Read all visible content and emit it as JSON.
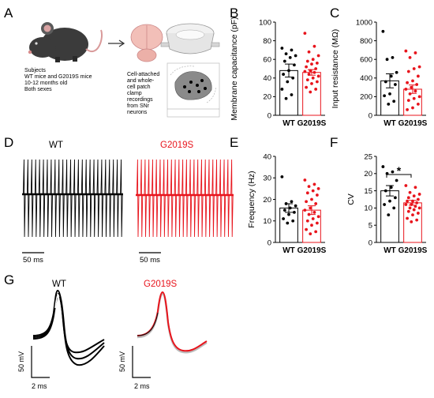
{
  "panel_labels": {
    "A": "A",
    "B": "B",
    "C": "C",
    "D": "D",
    "E": "E",
    "F": "F",
    "G": "G"
  },
  "panel_a": {
    "subjects_lines": [
      "Subjects",
      "WT mice and G2019S mice",
      "10-12 months old",
      "Both sexes"
    ],
    "recording_lines": [
      "Cell-attached",
      "and        whole-",
      "cell        patch",
      "clamp",
      "recordings",
      "from          SNr",
      "neurons"
    ]
  },
  "groups": {
    "wt": "WT",
    "mutant": "G2019S"
  },
  "colors": {
    "wt": "#000000",
    "mutant": "#e8141c",
    "mutant_overlay": "#bcbcbc"
  },
  "scale_bars": {
    "d_wt": "50 ms",
    "d_mut": "50 ms",
    "g_wt_v": "50 mV",
    "g_wt_t": "2 ms",
    "g_mut_v": "50 mV",
    "g_mut_t": "2 ms"
  },
  "significance": "*",
  "chart_data": [
    {
      "panel": "B",
      "type": "bar",
      "ylabel": "Membrane capacitance (pF)",
      "ylim": [
        0,
        100
      ],
      "yticks": [
        0,
        20,
        40,
        60,
        80,
        100
      ],
      "categories": [
        "WT",
        "G2019S"
      ],
      "series": [
        {
          "name": "WT",
          "mean": 48,
          "sem": 7,
          "points": [
            72,
            70,
            66,
            64,
            62,
            58,
            54,
            48,
            44,
            40,
            36,
            28,
            22,
            18
          ]
        },
        {
          "name": "G2019S",
          "mean": 46,
          "sem": 3,
          "points": [
            88,
            74,
            68,
            64,
            60,
            58,
            56,
            55,
            52,
            50,
            48,
            47,
            46,
            44,
            42,
            40,
            38,
            36,
            34,
            30,
            28,
            25
          ]
        }
      ]
    },
    {
      "panel": "C",
      "type": "bar",
      "ylabel": "Input resistance (MΩ)",
      "ylim": [
        0,
        1000
      ],
      "yticks": [
        0,
        200,
        400,
        600,
        800,
        1000
      ],
      "categories": [
        "WT",
        "G2019S"
      ],
      "series": [
        {
          "name": "WT",
          "mean": 370,
          "sem": 75,
          "points": [
            900,
            620,
            600,
            460,
            420,
            360,
            330,
            230,
            210,
            150,
            120
          ]
        },
        {
          "name": "G2019S",
          "mean": 280,
          "sem": 45,
          "points": [
            690,
            670,
            620,
            520,
            500,
            470,
            420,
            370,
            350,
            330,
            300,
            280,
            260,
            230,
            200,
            180,
            160,
            120,
            80,
            60
          ]
        }
      ]
    },
    {
      "panel": "E",
      "type": "bar",
      "ylabel": "Frequency (Hz)",
      "ylim": [
        0,
        40
      ],
      "yticks": [
        0,
        10,
        20,
        30,
        40
      ],
      "categories": [
        "WT",
        "G2019S"
      ],
      "series": [
        {
          "name": "WT",
          "mean": 16,
          "sem": 2,
          "points": [
            30.5,
            19,
            18,
            17,
            16,
            15,
            14,
            13,
            11,
            10,
            9
          ]
        },
        {
          "name": "G2019S",
          "mean": 15,
          "sem": 2,
          "points": [
            29,
            27,
            26,
            25,
            24,
            23,
            22,
            20,
            19,
            18,
            16,
            15,
            14,
            13,
            12,
            11,
            10,
            9,
            8,
            6,
            5,
            4
          ]
        }
      ]
    },
    {
      "panel": "F",
      "type": "bar",
      "ylabel": "CV",
      "ylim": [
        0,
        25
      ],
      "yticks": [
        0,
        5,
        10,
        15,
        20,
        25
      ],
      "categories": [
        "WT",
        "G2019S"
      ],
      "series": [
        {
          "name": "WT",
          "mean": 15,
          "sem": 1.5,
          "points": [
            22,
            20.5,
            20,
            18,
            16,
            15,
            13,
            12,
            11,
            10,
            8
          ]
        },
        {
          "name": "G2019S",
          "mean": 11.5,
          "sem": 0.7,
          "points": [
            16.5,
            16,
            14.5,
            14,
            13.5,
            13,
            12.5,
            12,
            12,
            11.5,
            11,
            11,
            10.5,
            10,
            10,
            9.5,
            9,
            8.5,
            8,
            7,
            6.5,
            6
          ]
        }
      ]
    }
  ]
}
